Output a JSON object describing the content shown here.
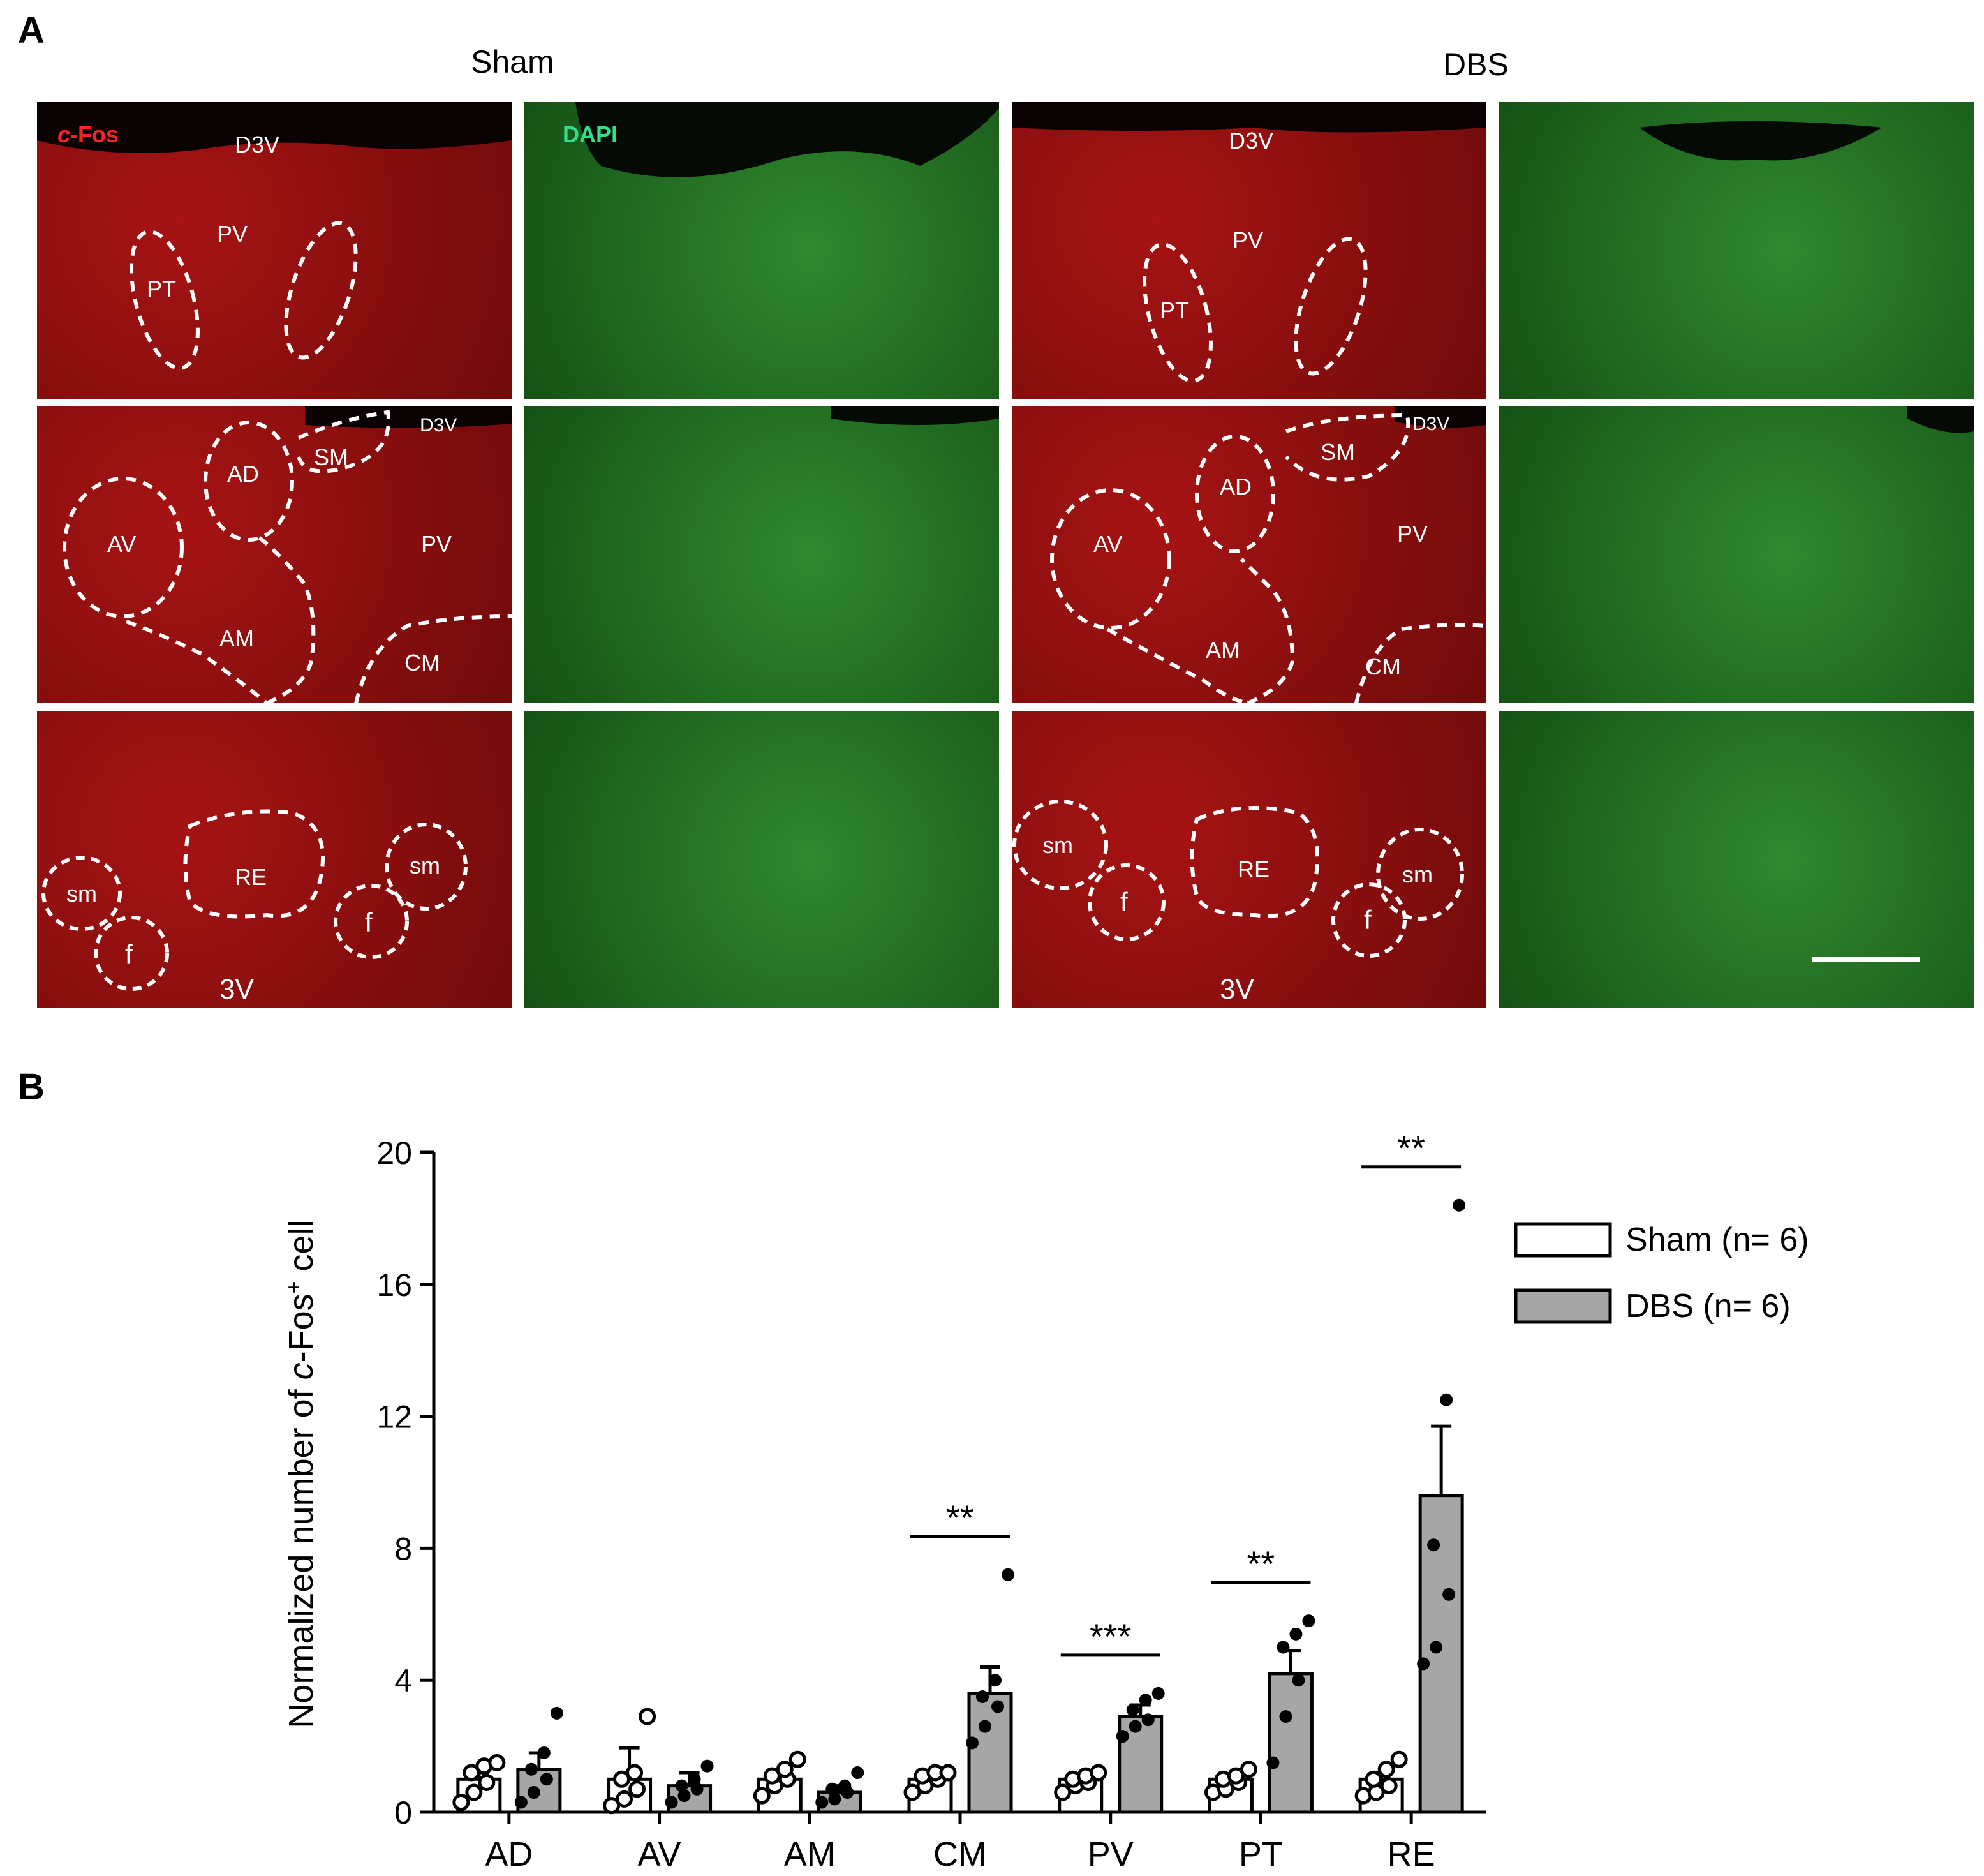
{
  "panel_a": {
    "letter": "A",
    "group_titles": [
      "Sham",
      "DBS"
    ],
    "stain_labels": {
      "cfos_c": "c",
      "cfos_rest": "-Fos",
      "dapi": "DAPI"
    },
    "row1": {
      "d3v": "D3V",
      "pv": "PV",
      "pt": "PT"
    },
    "row2": {
      "d3v": "D3V",
      "sm": "SM",
      "ad": "AD",
      "av": "AV",
      "pv": "PV",
      "am": "AM",
      "cm": "CM"
    },
    "row3": {
      "sm": "sm",
      "f": "f",
      "re": "RE",
      "v3": "3V"
    }
  },
  "panel_b": {
    "letter": "B"
  },
  "chart_data": {
    "type": "bar",
    "ylabel_parts": [
      "Normalized number of ",
      "c",
      "-Fos",
      "+",
      " cell"
    ],
    "ylim": [
      0,
      20
    ],
    "yticks": [
      0,
      4,
      8,
      12,
      16,
      20
    ],
    "categories": [
      "AD",
      "AV",
      "AM",
      "CM",
      "PV",
      "PT",
      "RE"
    ],
    "legend": {
      "placement": "right",
      "entries": [
        "Sham (n= 6)",
        "DBS (n= 6)"
      ]
    },
    "colors": {
      "sham": "#ffffff",
      "dbs": "#a6a6a6",
      "stroke": "#000000"
    },
    "series": [
      {
        "name": "Sham (n= 6)",
        "values": [
          1.0,
          1.0,
          1.0,
          1.0,
          1.0,
          1.0,
          1.0
        ],
        "sem": [
          0.2,
          0.95,
          0.15,
          0.1,
          0.1,
          0.1,
          0.2
        ],
        "points": [
          [
            0.3,
            0.6,
            0.9,
            1.2,
            1.4,
            1.5
          ],
          [
            0.2,
            0.4,
            0.7,
            1.0,
            1.2,
            2.9
          ],
          [
            0.5,
            0.8,
            1.0,
            1.1,
            1.3,
            1.6
          ],
          [
            0.6,
            0.8,
            1.0,
            1.1,
            1.2,
            1.2
          ],
          [
            0.6,
            0.8,
            0.9,
            1.0,
            1.1,
            1.2
          ],
          [
            0.6,
            0.7,
            0.9,
            1.0,
            1.1,
            1.3
          ],
          [
            0.5,
            0.6,
            0.8,
            1.0,
            1.3,
            1.6
          ]
        ]
      },
      {
        "name": "DBS (n= 6)",
        "values": [
          1.3,
          0.8,
          0.6,
          3.6,
          2.9,
          4.2,
          9.6
        ],
        "sem": [
          0.5,
          0.4,
          0.2,
          0.8,
          0.35,
          0.7,
          2.1
        ],
        "points": [
          [
            0.3,
            0.6,
            1.0,
            1.3,
            1.8,
            3.0
          ],
          [
            0.3,
            0.5,
            0.7,
            0.8,
            1.0,
            1.4
          ],
          [
            0.3,
            0.4,
            0.6,
            0.7,
            0.8,
            1.2
          ],
          [
            2.1,
            2.6,
            3.2,
            3.5,
            4.0,
            7.2
          ],
          [
            2.3,
            2.6,
            2.8,
            3.1,
            3.4,
            3.6
          ],
          [
            1.5,
            2.9,
            4.0,
            5.0,
            5.4,
            5.8
          ],
          [
            4.5,
            5.0,
            6.6,
            8.1,
            12.5,
            18.4
          ]
        ]
      }
    ],
    "significance": [
      {
        "category": "CM",
        "label": "**"
      },
      {
        "category": "PV",
        "label": "***"
      },
      {
        "category": "PT",
        "label": "**"
      },
      {
        "category": "RE",
        "label": "**"
      }
    ]
  }
}
